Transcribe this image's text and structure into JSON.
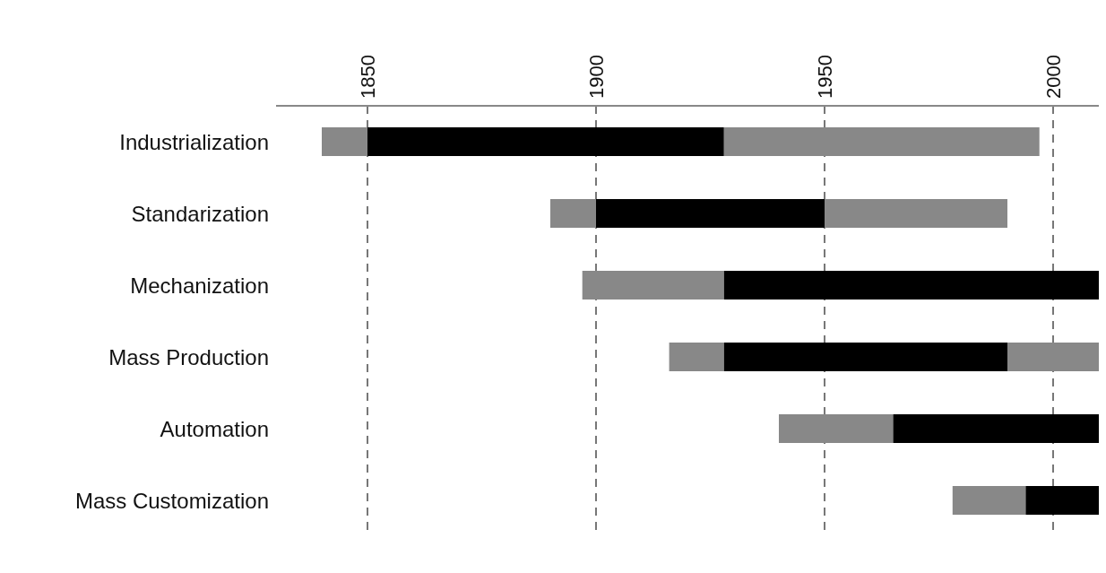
{
  "chart_data": {
    "type": "bar",
    "orientation": "horizontal",
    "categories": [
      "Industrialization",
      "Standarization",
      "Mechanization",
      "Mass Production",
      "Automation",
      "Mass Customization"
    ],
    "series": [
      {
        "color": "#888888",
        "base": [
          1840,
          1890,
          1897,
          1916,
          1940,
          1978
        ],
        "values": [
          10,
          10,
          31,
          12,
          25,
          16
        ]
      },
      {
        "color": "#000000",
        "base": [
          1850,
          1900,
          1928,
          1928,
          1965,
          1994
        ],
        "values": [
          78,
          50,
          82,
          62,
          45,
          16
        ]
      },
      {
        "color": "#888888",
        "base": [
          1928,
          1950,
          null,
          1990,
          null,
          null
        ],
        "values": [
          69,
          40,
          null,
          20,
          null,
          null
        ]
      }
    ],
    "xlim": [
      1830,
      2010
    ],
    "xticks": [
      1850,
      1900,
      1950,
      2000
    ],
    "grid": "x"
  }
}
